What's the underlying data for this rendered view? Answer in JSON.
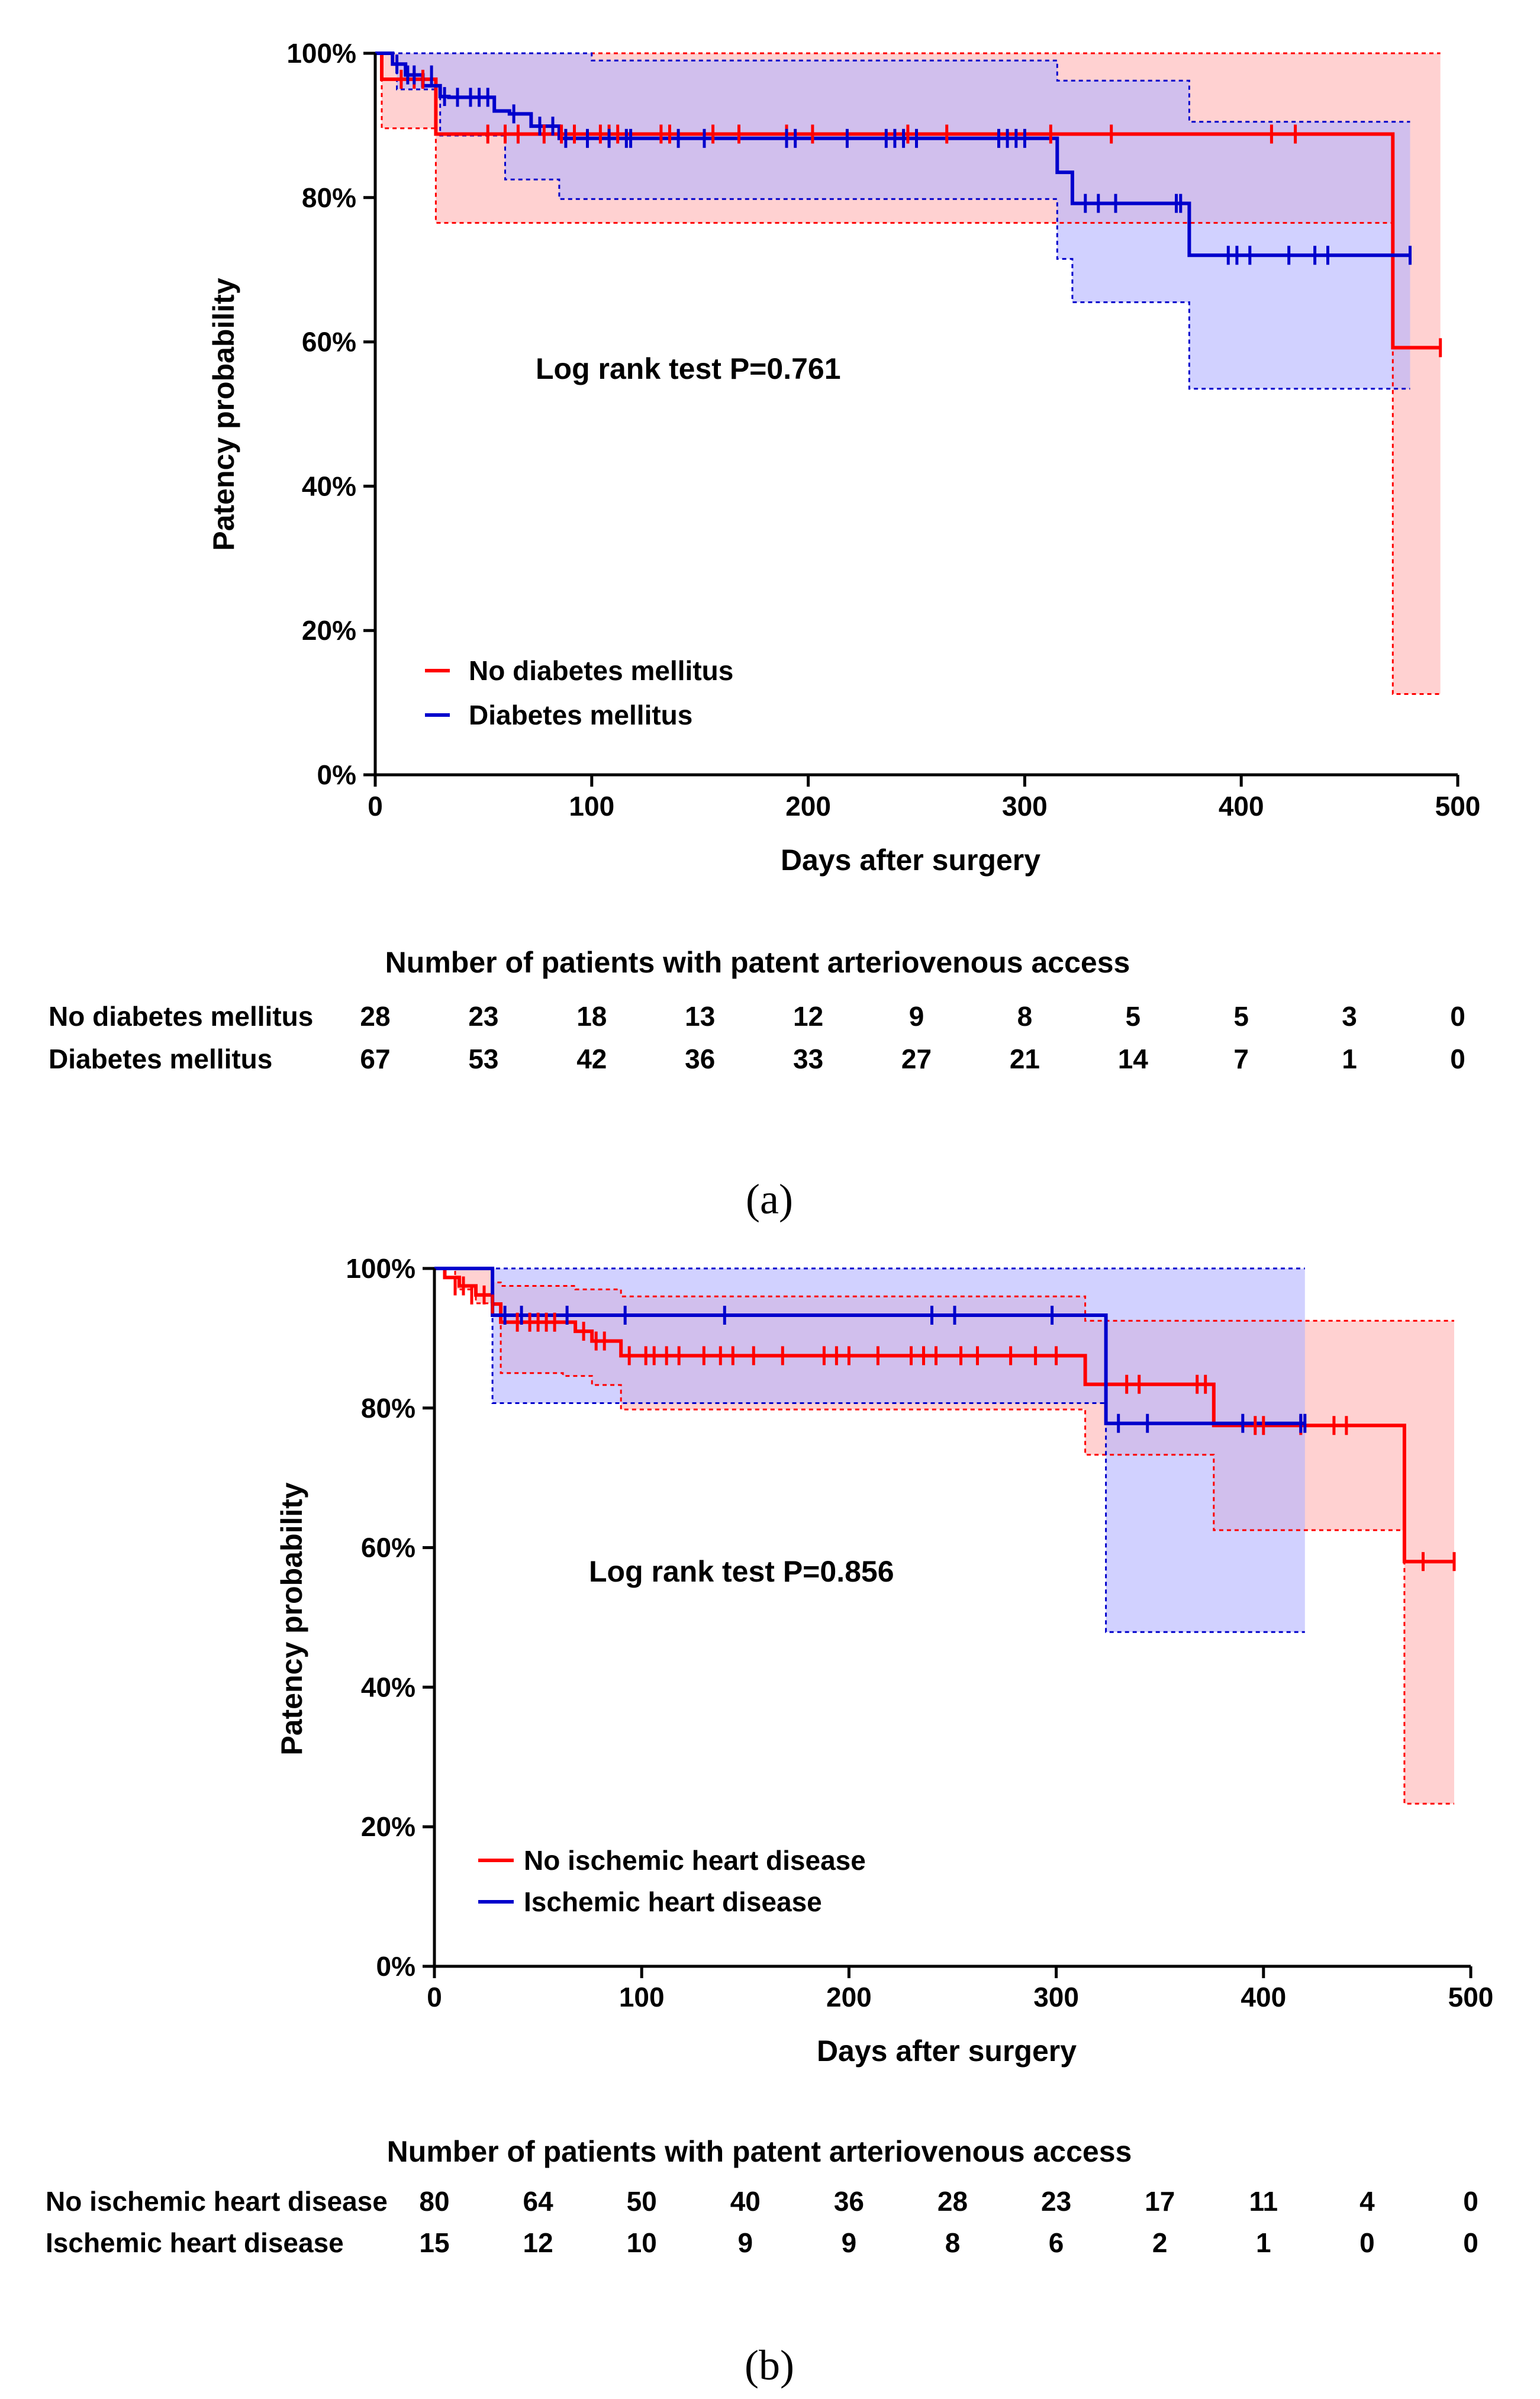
{
  "chart_data": [
    {
      "type": "line",
      "panel_label": "(a)",
      "xlabel": "Days after surgery",
      "ylabel": "Patency probability",
      "xlim": [
        0,
        500
      ],
      "ylim": [
        0,
        100
      ],
      "x_ticks": [
        0,
        100,
        200,
        300,
        400,
        500
      ],
      "y_ticks": [
        0,
        20,
        40,
        60,
        80,
        100
      ],
      "x_tick_labels": [
        "0",
        "100",
        "200",
        "300",
        "400",
        "500"
      ],
      "y_tick_labels": [
        "0%",
        "20%",
        "40%",
        "60%",
        "80%",
        "100%"
      ],
      "annotation": "Log rank test P=0.761",
      "legend_position": "lower-left",
      "series": [
        {
          "name": "No diabetes mellitus",
          "color": "#ff0000",
          "fill": "#ffb3b3",
          "steps": [
            [
              0,
              100
            ],
            [
              3,
              96.4
            ],
            [
              20,
              96.4
            ],
            [
              28,
              88.8
            ],
            [
              470,
              88.8
            ],
            [
              470,
              59.2
            ],
            [
              492,
              59.2
            ]
          ],
          "ci_upper": [
            [
              0,
              100
            ],
            [
              492,
              100
            ]
          ],
          "ci_lower": [
            [
              0,
              100
            ],
            [
              3,
              89.6
            ],
            [
              28,
              76.5
            ],
            [
              470,
              76.5
            ],
            [
              470,
              11.2
            ],
            [
              492,
              11.2
            ]
          ],
          "censors": [
            [
              12,
              96.4
            ],
            [
              18,
              96.4
            ],
            [
              22,
              96.4
            ],
            [
              52,
              88.8
            ],
            [
              60,
              88.8
            ],
            [
              66,
              88.8
            ],
            [
              78,
              88.8
            ],
            [
              86,
              88.8
            ],
            [
              92,
              88.8
            ],
            [
              104,
              88.8
            ],
            [
              108,
              88.8
            ],
            [
              112,
              88.8
            ],
            [
              132,
              88.8
            ],
            [
              136,
              88.8
            ],
            [
              156,
              88.8
            ],
            [
              168,
              88.8
            ],
            [
              190,
              88.8
            ],
            [
              202,
              88.8
            ],
            [
              246,
              88.8
            ],
            [
              264,
              88.8
            ],
            [
              312,
              88.8
            ],
            [
              340,
              88.8
            ],
            [
              414,
              88.8
            ],
            [
              425,
              88.8
            ],
            [
              492,
              59.2
            ]
          ]
        },
        {
          "name": "Diabetes mellitus",
          "color": "#0000cc",
          "fill": "#b3b3ff",
          "steps": [
            [
              0,
              100
            ],
            [
              8,
              98.5
            ],
            [
              14,
              97.0
            ],
            [
              22,
              95.5
            ],
            [
              30,
              94.0
            ],
            [
              34,
              93.9
            ],
            [
              55,
              92.0
            ],
            [
              62,
              91.6
            ],
            [
              72,
              89.9
            ],
            [
              85,
              88.2
            ],
            [
              100,
              88.2
            ],
            [
              315,
              88.2
            ],
            [
              315,
              83.5
            ],
            [
              322,
              79.2
            ],
            [
              376,
              79.2
            ],
            [
              376,
              72.0
            ],
            [
              478,
              72.0
            ]
          ],
          "ci_upper": [
            [
              0,
              100
            ],
            [
              100,
              100
            ],
            [
              100,
              99.0
            ],
            [
              300,
              99.0
            ],
            [
              315,
              96.2
            ],
            [
              376,
              90.5
            ],
            [
              478,
              90.5
            ]
          ],
          "ci_lower": [
            [
              0,
              100
            ],
            [
              10,
              95
            ],
            [
              30,
              88.6
            ],
            [
              60,
              82.5
            ],
            [
              85,
              79.8
            ],
            [
              315,
              79.8
            ],
            [
              315,
              71.5
            ],
            [
              322,
              65.5
            ],
            [
              376,
              65.5
            ],
            [
              376,
              53.5
            ],
            [
              478,
              53.5
            ]
          ],
          "censors": [
            [
              10,
              98.5
            ],
            [
              15,
              97.0
            ],
            [
              18,
              97.0
            ],
            [
              26,
              97.0
            ],
            [
              32,
              94.0
            ],
            [
              38,
              93.9
            ],
            [
              44,
              93.9
            ],
            [
              48,
              93.9
            ],
            [
              52,
              93.9
            ],
            [
              64,
              91.6
            ],
            [
              76,
              89.9
            ],
            [
              82,
              89.9
            ],
            [
              88,
              88.2
            ],
            [
              98,
              88.2
            ],
            [
              108,
              88.2
            ],
            [
              116,
              88.2
            ],
            [
              118,
              88.2
            ],
            [
              140,
              88.2
            ],
            [
              152,
              88.2
            ],
            [
              190,
              88.2
            ],
            [
              194,
              88.2
            ],
            [
              218,
              88.2
            ],
            [
              236,
              88.2
            ],
            [
              240,
              88.2
            ],
            [
              244,
              88.2
            ],
            [
              250,
              88.2
            ],
            [
              288,
              88.2
            ],
            [
              292,
              88.2
            ],
            [
              296,
              88.2
            ],
            [
              300,
              88.2
            ],
            [
              328,
              79.2
            ],
            [
              334,
              79.2
            ],
            [
              342,
              79.2
            ],
            [
              370,
              79.2
            ],
            [
              372,
              79.2
            ],
            [
              394,
              72.0
            ],
            [
              398,
              72.0
            ],
            [
              404,
              72.0
            ],
            [
              422,
              72.0
            ],
            [
              434,
              72.0
            ],
            [
              440,
              72.0
            ],
            [
              478,
              72.0
            ]
          ]
        }
      ],
      "risk_table": {
        "title": "Number of patients with patent arteriovenous access",
        "times": [
          0,
          50,
          100,
          150,
          200,
          250,
          300,
          350,
          400,
          450,
          500
        ],
        "rows": [
          {
            "label": "No diabetes mellitus",
            "counts": [
              "28",
              "23",
              "18",
              "13",
              "12",
              "9",
              "8",
              "5",
              "5",
              "3",
              "0"
            ]
          },
          {
            "label": "Diabetes mellitus",
            "counts": [
              "67",
              "53",
              "42",
              "36",
              "33",
              "27",
              "21",
              "14",
              "7",
              "1",
              "0"
            ]
          }
        ]
      }
    },
    {
      "type": "line",
      "panel_label": "(b)",
      "xlabel": "Days after surgery",
      "ylabel": "Patency probability",
      "xlim": [
        0,
        500
      ],
      "ylim": [
        0,
        100
      ],
      "x_ticks": [
        0,
        100,
        200,
        300,
        400,
        500
      ],
      "y_ticks": [
        0,
        20,
        40,
        60,
        80,
        100
      ],
      "x_tick_labels": [
        "0",
        "100",
        "200",
        "300",
        "400",
        "500"
      ],
      "y_tick_labels": [
        "0%",
        "20%",
        "40%",
        "60%",
        "80%",
        "100%"
      ],
      "annotation": "Log rank test P=0.856",
      "legend_position": "lower-left",
      "series": [
        {
          "name": "No ischemic heart disease",
          "color": "#ff0000",
          "fill": "#ffb3b3",
          "steps": [
            [
              0,
              100
            ],
            [
              5,
              98.7
            ],
            [
              12,
              97.5
            ],
            [
              20,
              96.2
            ],
            [
              28,
              94.9
            ],
            [
              32,
              92.3
            ],
            [
              62,
              92.3
            ],
            [
              68,
              91.0
            ],
            [
              76,
              89.6
            ],
            [
              90,
              87.5
            ],
            [
              314,
              87.5
            ],
            [
              314,
              83.4
            ],
            [
              376,
              83.4
            ],
            [
              376,
              77.5
            ],
            [
              468,
              77.5
            ],
            [
              468,
              58.0
            ],
            [
              492,
              58.0
            ]
          ],
          "ci_upper": [
            [
              0,
              100
            ],
            [
              28,
              100
            ],
            [
              28,
              98.0
            ],
            [
              32,
              97.5
            ],
            [
              68,
              97.0
            ],
            [
              90,
              96.0
            ],
            [
              314,
              96.0
            ],
            [
              314,
              92.5
            ],
            [
              492,
              92.5
            ]
          ],
          "ci_lower": [
            [
              0,
              100
            ],
            [
              10,
              97
            ],
            [
              20,
              95
            ],
            [
              32,
              85
            ],
            [
              62,
              84.6
            ],
            [
              76,
              83.3
            ],
            [
              90,
              79.8
            ],
            [
              314,
              79.8
            ],
            [
              314,
              73.3
            ],
            [
              376,
              73.3
            ],
            [
              376,
              62.5
            ],
            [
              468,
              62.5
            ],
            [
              468,
              23.3
            ],
            [
              492,
              23.3
            ]
          ],
          "censors": [
            [
              10,
              97.5
            ],
            [
              14,
              97.5
            ],
            [
              18,
              96.2
            ],
            [
              24,
              96.2
            ],
            [
              28,
              94.9
            ],
            [
              40,
              92.3
            ],
            [
              46,
              92.3
            ],
            [
              50,
              92.3
            ],
            [
              54,
              92.3
            ],
            [
              58,
              92.3
            ],
            [
              72,
              91.0
            ],
            [
              78,
              89.6
            ],
            [
              82,
              89.6
            ],
            [
              94,
              87.5
            ],
            [
              102,
              87.5
            ],
            [
              106,
              87.5
            ],
            [
              112,
              87.5
            ],
            [
              118,
              87.5
            ],
            [
              130,
              87.5
            ],
            [
              138,
              87.5
            ],
            [
              144,
              87.5
            ],
            [
              154,
              87.5
            ],
            [
              168,
              87.5
            ],
            [
              188,
              87.5
            ],
            [
              194,
              87.5
            ],
            [
              200,
              87.5
            ],
            [
              214,
              87.5
            ],
            [
              230,
              87.5
            ],
            [
              236,
              87.5
            ],
            [
              242,
              87.5
            ],
            [
              254,
              87.5
            ],
            [
              262,
              87.5
            ],
            [
              278,
              87.5
            ],
            [
              290,
              87.5
            ],
            [
              300,
              87.5
            ],
            [
              334,
              83.4
            ],
            [
              340,
              83.4
            ],
            [
              368,
              83.4
            ],
            [
              372,
              83.4
            ],
            [
              396,
              77.5
            ],
            [
              400,
              77.5
            ],
            [
              418,
              77.5
            ],
            [
              434,
              77.5
            ],
            [
              440,
              77.5
            ],
            [
              477,
              58.0
            ],
            [
              492,
              58.0
            ]
          ]
        },
        {
          "name": "Ischemic heart disease",
          "color": "#0000cc",
          "fill": "#b3b3ff",
          "steps": [
            [
              0,
              100
            ],
            [
              28,
              100
            ],
            [
              28,
              93.3
            ],
            [
              324,
              93.3
            ],
            [
              324,
              77.8
            ],
            [
              420,
              77.8
            ]
          ],
          "ci_upper": [
            [
              0,
              100
            ],
            [
              420,
              100
            ]
          ],
          "ci_lower": [
            [
              0,
              100
            ],
            [
              28,
              100
            ],
            [
              28,
              80.7
            ],
            [
              324,
              80.7
            ],
            [
              324,
              47.9
            ],
            [
              420,
              47.9
            ]
          ],
          "censors": [
            [
              34,
              93.3
            ],
            [
              42,
              93.3
            ],
            [
              64,
              93.3
            ],
            [
              92,
              93.3
            ],
            [
              140,
              93.3
            ],
            [
              240,
              93.3
            ],
            [
              251,
              93.3
            ],
            [
              298,
              93.3
            ],
            [
              330,
              77.8
            ],
            [
              344,
              77.8
            ],
            [
              390,
              77.8
            ],
            [
              418,
              77.8
            ],
            [
              420,
              77.8
            ]
          ]
        }
      ],
      "risk_table": {
        "title": "Number of patients with patent arteriovenous access",
        "times": [
          0,
          50,
          100,
          150,
          200,
          250,
          300,
          350,
          400,
          450,
          500
        ],
        "rows": [
          {
            "label": "No ischemic heart disease",
            "counts": [
              "80",
              "64",
              "50",
              "40",
              "36",
              "28",
              "23",
              "17",
              "11",
              "4",
              "0"
            ]
          },
          {
            "label": "Ischemic heart disease",
            "counts": [
              "15",
              "12",
              "10",
              "9",
              "9",
              "8",
              "6",
              "2",
              "1",
              "0",
              "0"
            ]
          }
        ]
      }
    }
  ]
}
